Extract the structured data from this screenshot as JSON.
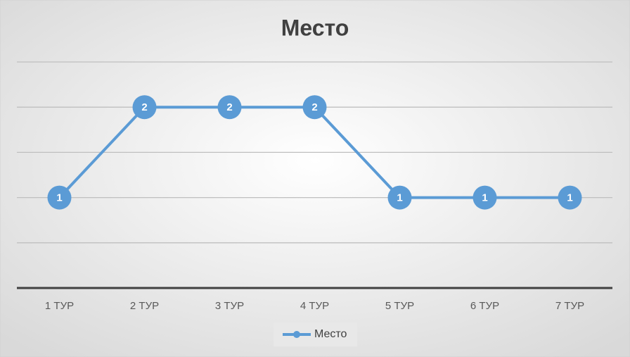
{
  "chart_data": {
    "type": "line",
    "title": "Место",
    "categories": [
      "1 ТУР",
      "2 ТУР",
      "3 ТУР",
      "4 ТУР",
      "5 ТУР",
      "6 ТУР",
      "7 ТУР"
    ],
    "series": [
      {
        "name": "Место",
        "color": "#5b9bd5",
        "values": [
          1,
          2,
          2,
          2,
          1,
          1,
          1
        ]
      }
    ],
    "ylim": [
      0,
      2.5
    ],
    "yticks": [
      0,
      0.5,
      1,
      1.5,
      2,
      2.5
    ],
    "grid": true,
    "legend": "bottom"
  }
}
